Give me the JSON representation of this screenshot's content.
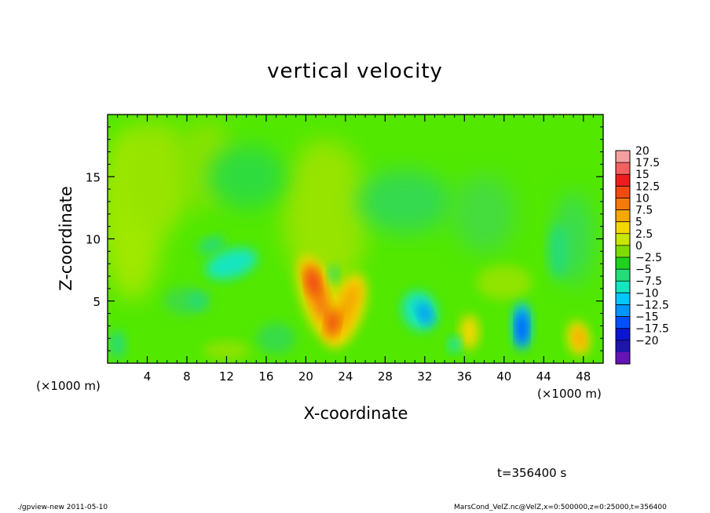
{
  "chart_data": {
    "type": "heatmap",
    "title": "vertical velocity",
    "xlabel": "X-coordinate",
    "ylabel": "Z-coordinate",
    "x_unit_left": "(×1000 m)",
    "x_unit_right": "(×1000 m)",
    "xlim": [
      0,
      50
    ],
    "ylim": [
      0,
      20
    ],
    "x_ticks": [
      "4",
      "8",
      "12",
      "16",
      "20",
      "24",
      "28",
      "32",
      "36",
      "40",
      "44",
      "48"
    ],
    "x_tick_values": [
      4,
      8,
      12,
      16,
      20,
      24,
      28,
      32,
      36,
      40,
      44,
      48
    ],
    "y_ticks": [
      "5",
      "10",
      "15"
    ],
    "y_tick_values": [
      5,
      10,
      15
    ],
    "colorbar": {
      "labels": [
        "20",
        "17.5",
        "15",
        "12.5",
        "10",
        "7.5",
        "5",
        "2.5",
        "0",
        "−2.5",
        "−5",
        "−7.5",
        "−10",
        "−12.5",
        "−15",
        "−17.5",
        "−20"
      ],
      "bands_top_to_bottom": [
        "#f4a0a0",
        "#f26060",
        "#ee1c1c",
        "#f04a10",
        "#f57a0a",
        "#f5a800",
        "#f5d800",
        "#c8e600",
        "#7ddc00",
        "#1ed21e",
        "#26dc78",
        "#14e6c0",
        "#00c8ff",
        "#0096ff",
        "#0050ff",
        "#0a14d2",
        "#1e14aa",
        "#6414b4"
      ]
    },
    "features": [
      {
        "kind": "updraft",
        "x": 21,
        "z": 5.5,
        "value": 12.5
      },
      {
        "kind": "updraft",
        "x": 22.5,
        "z": 3,
        "value": 12.5
      },
      {
        "kind": "updraft",
        "x": 24.5,
        "z": 5.5,
        "value": 7.5
      },
      {
        "kind": "updraft",
        "x": 47.5,
        "z": 2,
        "value": 7.5
      },
      {
        "kind": "updraft",
        "x": 36.5,
        "z": 2.5,
        "value": 2.5
      },
      {
        "kind": "downdraft",
        "x": 32,
        "z": 4,
        "value": -10
      },
      {
        "kind": "downdraft",
        "x": 41.8,
        "z": 2.8,
        "value": -12.5
      },
      {
        "kind": "downdraft",
        "x": 12.5,
        "z": 8,
        "value": -5
      }
    ]
  },
  "time_label": "t=356400 s",
  "footer_left": "./gpview-new   2011-05-10",
  "footer_right": "MarsCond_VelZ.nc@VelZ,x=0:500000,z=0:25000,t=356400"
}
